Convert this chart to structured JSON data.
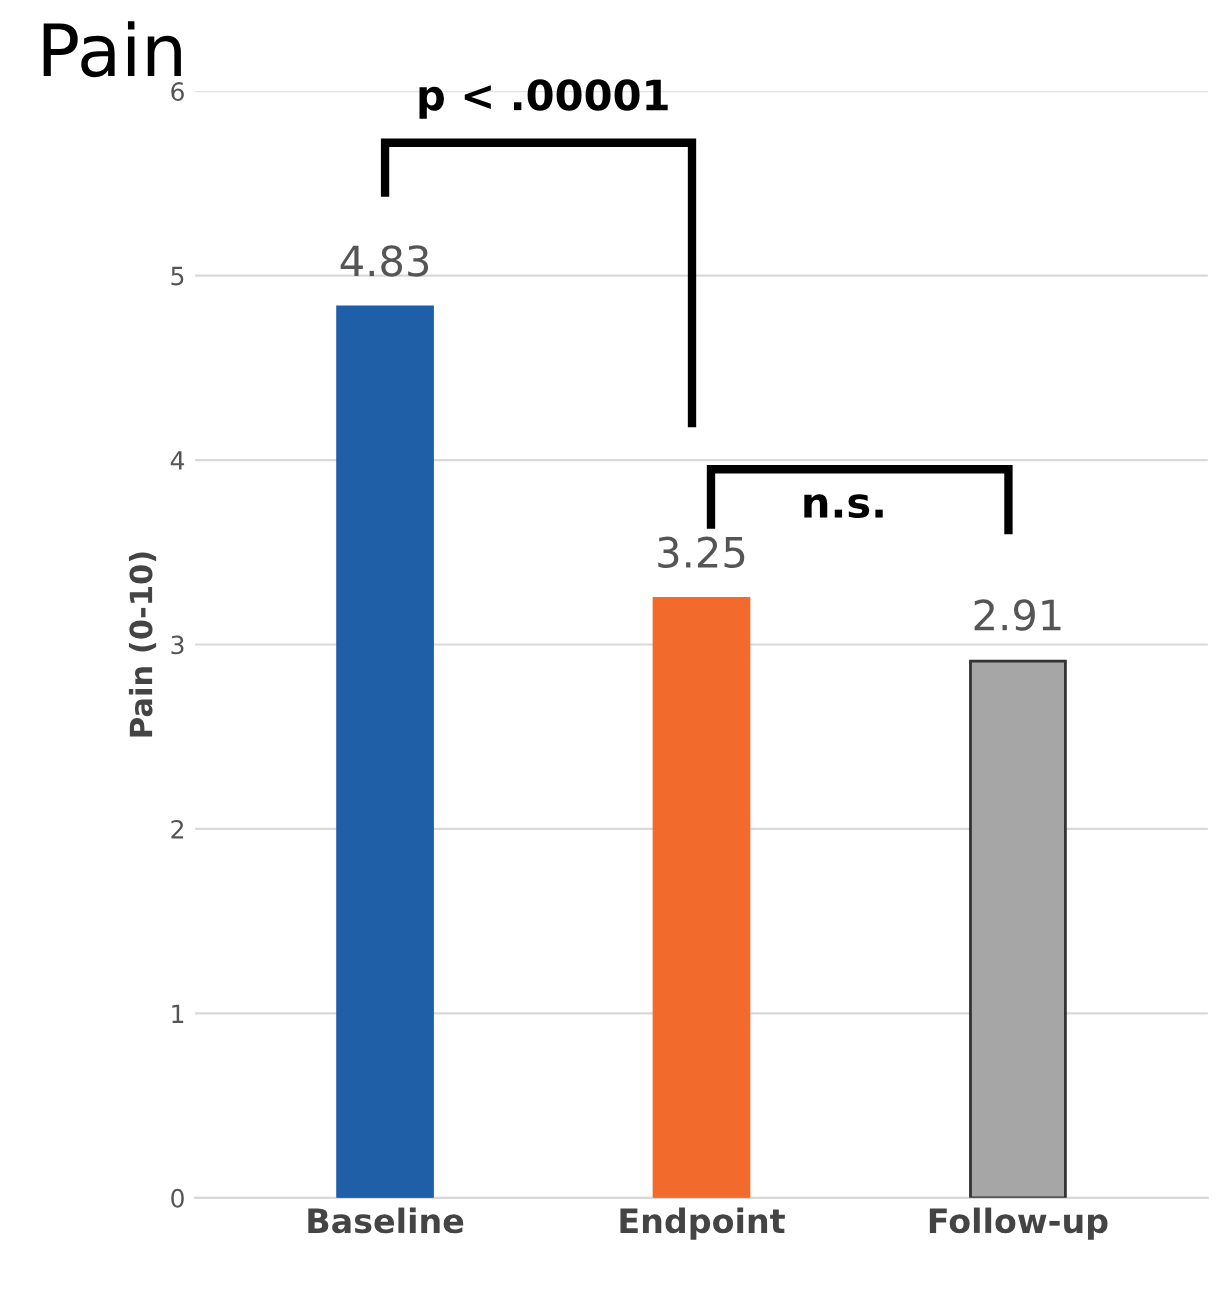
{
  "chart_data": {
    "type": "bar",
    "title": "Pain",
    "ylabel": "Pain (0-10)",
    "categories": [
      "Baseline",
      "Endpoint",
      "Follow-up"
    ],
    "values": [
      4.83,
      3.25,
      2.91
    ],
    "colors": [
      "#1f5fa8",
      "#f36b2c",
      "#a6a6a6"
    ],
    "data_labels": true,
    "ylim": [
      0,
      6
    ],
    "yticks": [
      0,
      1,
      2,
      3,
      4,
      5,
      6
    ],
    "grid": "y",
    "annotations": [
      "p < .00001",
      "n.s."
    ]
  }
}
